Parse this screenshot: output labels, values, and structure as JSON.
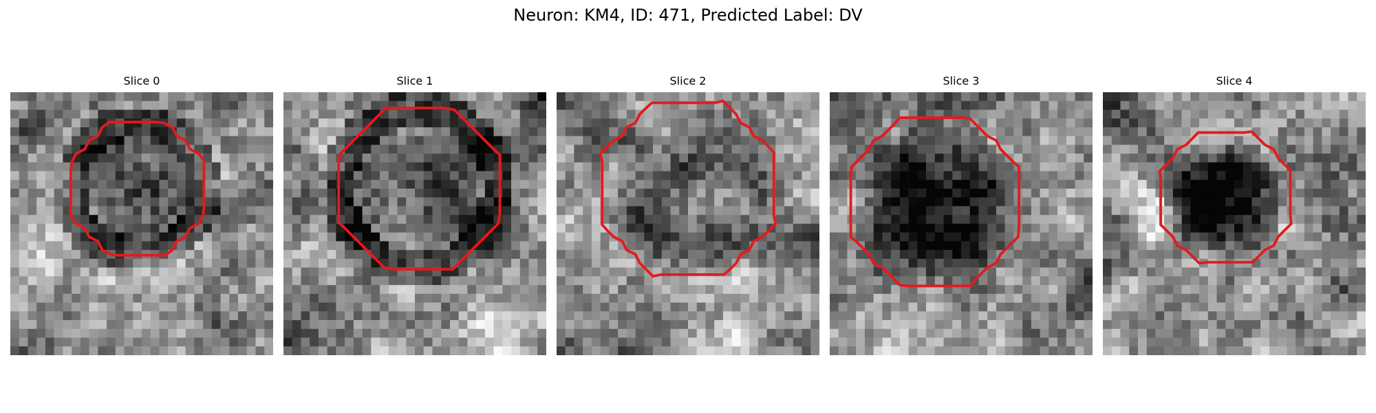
{
  "figure": {
    "title": "Neuron: KM4, ID: 471, Predicted Label: DV"
  },
  "panels": [
    {
      "title": "Slice 0"
    },
    {
      "title": "Slice 1"
    },
    {
      "title": "Slice 2"
    },
    {
      "title": "Slice 3"
    },
    {
      "title": "Slice 4"
    }
  ],
  "colors": {
    "contour": "#e41a1c",
    "background": "#ffffff"
  }
}
